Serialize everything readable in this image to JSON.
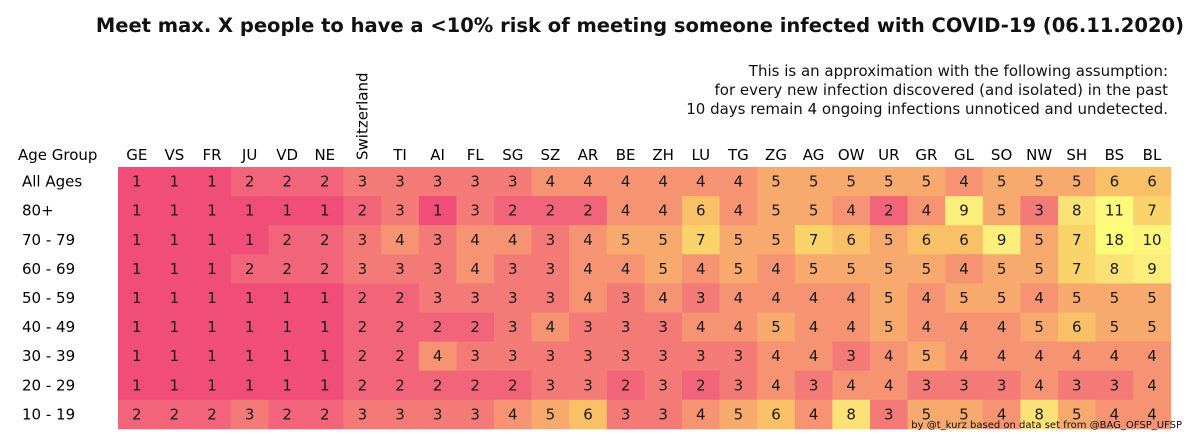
{
  "chart_data": {
    "type": "heatmap",
    "title": "Meet max. X people to have a <10% risk of meeting someone infected with COVID-19 (06.11.2020)",
    "subtitle_lines": [
      "This is an approximation with the following assumption:",
      "for every new infection discovered (and isolated) in the past",
      "10 days remain 4 ongoing infections unnoticed and undetected."
    ],
    "row_header": "Age Group",
    "columns": [
      "GE",
      "VS",
      "FR",
      "JU",
      "VD",
      "NE",
      "Switzerland",
      "TI",
      "AI",
      "FL",
      "SG",
      "SZ",
      "AR",
      "BE",
      "ZH",
      "LU",
      "TG",
      "ZG",
      "AG",
      "OW",
      "UR",
      "GR",
      "GL",
      "SO",
      "NW",
      "SH",
      "BS",
      "BL"
    ],
    "rows": [
      "All Ages",
      "80+",
      "70 - 79",
      "60 - 69",
      "50 - 59",
      "40 - 49",
      "30 - 39",
      "20 - 29",
      "10 - 19"
    ],
    "values": [
      [
        1,
        1,
        1,
        2,
        2,
        2,
        3,
        3,
        3,
        3,
        3,
        4,
        4,
        4,
        4,
        4,
        4,
        5,
        5,
        5,
        5,
        5,
        4,
        5,
        5,
        5,
        6,
        6
      ],
      [
        1,
        1,
        1,
        1,
        1,
        1,
        2,
        3,
        1,
        3,
        2,
        2,
        2,
        4,
        4,
        6,
        4,
        5,
        5,
        4,
        2,
        4,
        9,
        5,
        3,
        8,
        11,
        7
      ],
      [
        1,
        1,
        1,
        1,
        2,
        2,
        3,
        4,
        3,
        4,
        4,
        3,
        4,
        5,
        5,
        7,
        5,
        5,
        7,
        6,
        5,
        6,
        6,
        9,
        5,
        7,
        18,
        10
      ],
      [
        1,
        1,
        1,
        2,
        2,
        2,
        3,
        3,
        3,
        4,
        3,
        3,
        4,
        4,
        5,
        4,
        5,
        4,
        5,
        5,
        5,
        5,
        4,
        5,
        5,
        7,
        8,
        9
      ],
      [
        1,
        1,
        1,
        1,
        1,
        1,
        2,
        2,
        3,
        3,
        3,
        3,
        4,
        3,
        4,
        3,
        4,
        4,
        4,
        4,
        5,
        4,
        5,
        5,
        4,
        5,
        5,
        5
      ],
      [
        1,
        1,
        1,
        1,
        1,
        1,
        2,
        2,
        2,
        2,
        3,
        4,
        3,
        3,
        3,
        4,
        4,
        5,
        4,
        4,
        5,
        4,
        4,
        4,
        5,
        6,
        5,
        5
      ],
      [
        1,
        1,
        1,
        1,
        1,
        1,
        2,
        2,
        4,
        3,
        3,
        3,
        3,
        3,
        3,
        3,
        3,
        4,
        4,
        3,
        4,
        5,
        4,
        4,
        4,
        4,
        4,
        4
      ],
      [
        1,
        1,
        1,
        1,
        1,
        1,
        2,
        2,
        2,
        2,
        2,
        3,
        3,
        2,
        3,
        2,
        3,
        4,
        3,
        4,
        4,
        3,
        3,
        3,
        4,
        3,
        3,
        4
      ],
      [
        2,
        2,
        2,
        3,
        2,
        2,
        3,
        3,
        3,
        3,
        4,
        5,
        6,
        3,
        3,
        4,
        5,
        6,
        4,
        8,
        3,
        5,
        5,
        4,
        8,
        5,
        4,
        4
      ]
    ],
    "credit": "by @t_kurz based on data set from @BAG_OFSP_UFSP",
    "color_scale": {
      "stops": [
        {
          "value": 1,
          "color": "#f04e79"
        },
        {
          "value": 2,
          "color": "#f26479"
        },
        {
          "value": 3,
          "color": "#f47a77"
        },
        {
          "value": 4,
          "color": "#f69373"
        },
        {
          "value": 5,
          "color": "#f8a96e"
        },
        {
          "value": 6,
          "color": "#f9c068"
        },
        {
          "value": 7,
          "color": "#fad46a"
        },
        {
          "value": 8,
          "color": "#fae276"
        },
        {
          "value": 9,
          "color": "#fbee7a"
        },
        {
          "value": 11,
          "color": "#fcf97c"
        },
        {
          "value": 18,
          "color": "#fdfd7a"
        }
      ]
    }
  }
}
